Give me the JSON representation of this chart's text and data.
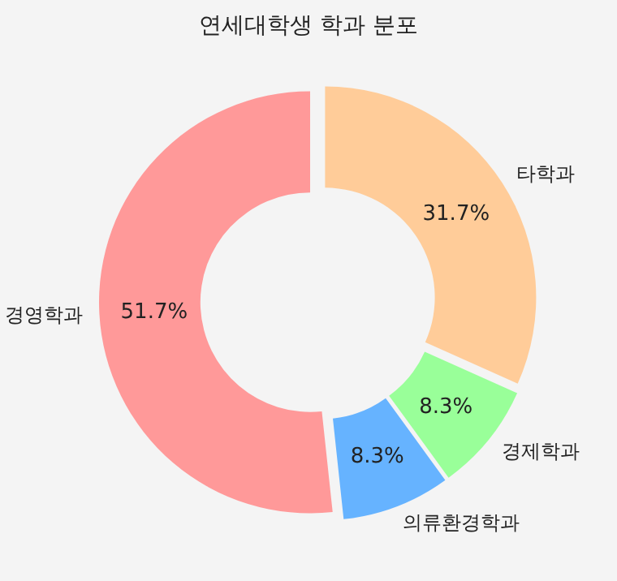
{
  "chart_data": {
    "type": "donut",
    "title": "연세대학생 학과 분포",
    "categories": [
      "경영학과",
      "의류환경학과",
      "경제학과",
      "타학과"
    ],
    "values": [
      51.7,
      8.3,
      8.3,
      31.7
    ],
    "colors": [
      "#ff9999",
      "#66b3ff",
      "#99ff99",
      "#ffcc99"
    ],
    "value_labels": [
      "51.7%",
      "8.3%",
      "8.3%",
      "31.7%"
    ]
  }
}
